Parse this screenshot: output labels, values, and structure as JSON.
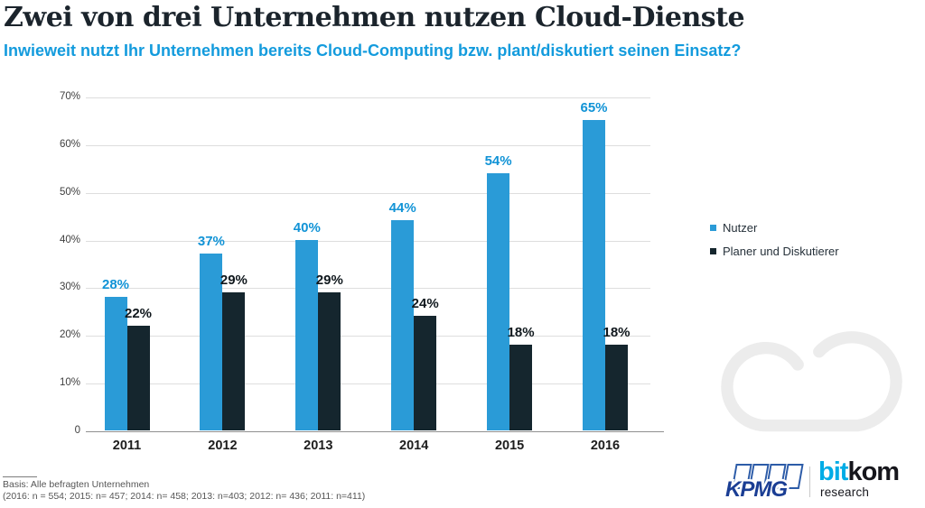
{
  "header": {
    "title": "Zwei von drei Unternehmen nutzen Cloud-Dienste",
    "subtitle": "Inwieweit nutzt Ihr Unternehmen bereits Cloud-Computing bzw. plant/diskutiert seinen Einsatz?"
  },
  "chart_data": {
    "type": "bar",
    "title": "Zwei von drei Unternehmen nutzen Cloud-Dienste",
    "categories": [
      "2011",
      "2012",
      "2013",
      "2014",
      "2015",
      "2016"
    ],
    "series": [
      {
        "name": "Nutzer",
        "color": "#2a9bd7",
        "label_color": "#1193d6",
        "values": [
          28,
          37,
          40,
          44,
          54,
          65
        ]
      },
      {
        "name": "Planer und Diskutierer",
        "color": "#15262e",
        "label_color": "#10181d",
        "values": [
          22,
          29,
          29,
          24,
          18,
          18
        ]
      }
    ],
    "value_suffix": "%",
    "xlabel": "",
    "ylabel": "",
    "ylim": [
      0,
      70
    ],
    "y_ticks": [
      "70%",
      "60%",
      "50%",
      "40%",
      "30%",
      "20%",
      "10%",
      "0"
    ],
    "grid": true,
    "legend_position": "right"
  },
  "footnote": {
    "line1": "Basis: Alle befragten Unternehmen",
    "line2": "(2016: n = 554; 2015: n= 457; 2014: n= 458; 2013: n=403; 2012: n= 436; 2011: n=411)"
  },
  "branding": {
    "kpmg_label": "KPMG",
    "bitkom_part1": "bit",
    "bitkom_part2": "kom",
    "bitkom_sub": "research"
  },
  "colors": {
    "title": "#1b242c",
    "subtitle_blue": "#139bdd",
    "bar_blue": "#2a9bd7",
    "bar_dark": "#15262e",
    "gridline": "#dedede",
    "baseline": "#8f8f8f",
    "cloud_watermark": "#ececec",
    "kpmg_blue": "#1b3e94",
    "bitkom_blue": "#00ace6"
  }
}
